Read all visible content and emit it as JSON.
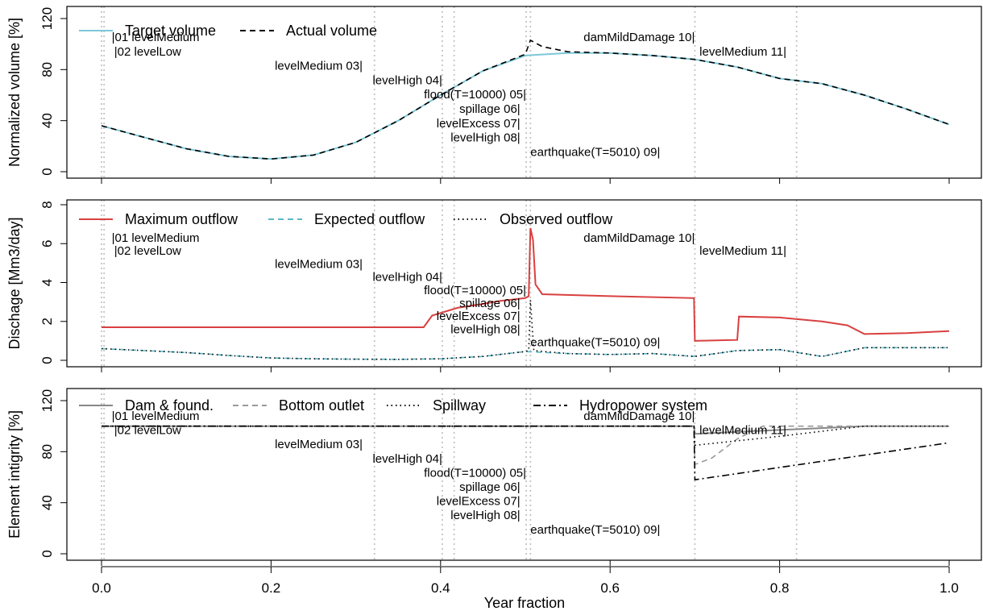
{
  "x_axis": {
    "label": "Year fraction",
    "ticks": [
      "0.0",
      "0.2",
      "0.4",
      "0.6",
      "0.8",
      "1.0"
    ],
    "range": [
      0,
      1
    ]
  },
  "event_lines": [
    0.0,
    0.003,
    0.322,
    0.402,
    0.416,
    0.501,
    0.506,
    0.7,
    0.82
  ],
  "annotations": [
    {
      "text": "|01 levelMedium",
      "x": 0.012,
      "anchor": "start",
      "row": 0
    },
    {
      "text": "|02 levelLow",
      "x": 0.015,
      "anchor": "start",
      "row": 1
    },
    {
      "text": "levelMedium 03|",
      "x": 0.308,
      "anchor": "end",
      "row": 2
    },
    {
      "text": "levelHigh 04|",
      "x": 0.402,
      "anchor": "end",
      "row": 3
    },
    {
      "text": "flood(T=10000) 05|",
      "x": 0.501,
      "anchor": "end",
      "row": 4
    },
    {
      "text": "spillage 06|",
      "x": 0.494,
      "anchor": "end",
      "row": 5
    },
    {
      "text": "levelExcess 07|",
      "x": 0.494,
      "anchor": "end",
      "row": 6
    },
    {
      "text": "levelHigh 08|",
      "x": 0.494,
      "anchor": "end",
      "row": 7
    },
    {
      "text": "earthquake(T=5010) 09|",
      "x": 0.506,
      "anchor": "start",
      "row": 8
    },
    {
      "text": "damMildDamage 10|",
      "x": 0.7,
      "anchor": "end",
      "row": 0
    },
    {
      "text": "levelMedium 11|",
      "x": 0.808,
      "anchor": "end",
      "row": 1
    }
  ],
  "chart_data": [
    {
      "type": "line",
      "ylabel": "Normalized volume [%]",
      "ylim": [
        0,
        120
      ],
      "yticks": [
        0,
        40,
        80,
        120
      ],
      "legend": [
        "Target volume",
        "Actual volume"
      ],
      "series": [
        {
          "name": "Target volume",
          "color": "#7cc8d8",
          "dash": "solid",
          "x": [
            0,
            0.05,
            0.1,
            0.15,
            0.2,
            0.25,
            0.3,
            0.35,
            0.4,
            0.45,
            0.5,
            0.55,
            0.6,
            0.65,
            0.7,
            0.75,
            0.8,
            0.85,
            0.9,
            0.95,
            1.0
          ],
          "y": [
            36,
            27,
            18,
            12,
            10,
            13,
            23,
            40,
            60,
            79,
            91,
            93,
            93,
            91,
            88,
            82,
            73,
            69,
            60,
            49,
            37
          ]
        },
        {
          "name": "Actual volume",
          "color": "#000000",
          "dash": "dashed",
          "x": [
            0,
            0.05,
            0.1,
            0.15,
            0.2,
            0.25,
            0.3,
            0.35,
            0.4,
            0.45,
            0.5,
            0.506,
            0.52,
            0.55,
            0.6,
            0.65,
            0.7,
            0.75,
            0.8,
            0.85,
            0.9,
            0.95,
            1.0
          ],
          "y": [
            36,
            27,
            18,
            12,
            10,
            13,
            23,
            40,
            60,
            79,
            92,
            103,
            98,
            94,
            93,
            91,
            88,
            82,
            73,
            69,
            60,
            49,
            37
          ]
        }
      ]
    },
    {
      "type": "line",
      "ylabel": "Dischage [Mm3/day]",
      "ylim": [
        0,
        8
      ],
      "yticks": [
        0,
        2,
        4,
        6,
        8
      ],
      "legend": [
        "Maximum outflow",
        "Expected outflow",
        "Observed outflow"
      ],
      "series": [
        {
          "name": "Maximum outflow",
          "color": "#d94040",
          "dash": "solid",
          "x": [
            0,
            0.38,
            0.39,
            0.42,
            0.45,
            0.47,
            0.5,
            0.504,
            0.506,
            0.509,
            0.512,
            0.52,
            0.6,
            0.699,
            0.7,
            0.75,
            0.752,
            0.8,
            0.85,
            0.88,
            0.9,
            0.95,
            1.0
          ],
          "y": [
            1.7,
            1.7,
            2.3,
            2.7,
            2.9,
            3.05,
            3.2,
            3.3,
            6.8,
            6.2,
            3.9,
            3.4,
            3.3,
            3.2,
            1.0,
            1.05,
            2.25,
            2.2,
            2.0,
            1.8,
            1.35,
            1.4,
            1.5
          ]
        },
        {
          "name": "Expected outflow",
          "color": "#5cb8c8",
          "dash": "dashed",
          "x": [
            0,
            0.05,
            0.1,
            0.15,
            0.2,
            0.25,
            0.3,
            0.35,
            0.4,
            0.45,
            0.5,
            0.55,
            0.6,
            0.65,
            0.7,
            0.75,
            0.8,
            0.85,
            0.9,
            0.95,
            1.0
          ],
          "y": [
            0.6,
            0.5,
            0.4,
            0.25,
            0.12,
            0.08,
            0.06,
            0.05,
            0.08,
            0.2,
            0.45,
            0.35,
            0.3,
            0.35,
            0.2,
            0.5,
            0.55,
            0.2,
            0.65,
            0.65,
            0.65
          ]
        },
        {
          "name": "Observed outflow",
          "color": "#000000",
          "dash": "dotted",
          "x": [
            0,
            0.05,
            0.1,
            0.15,
            0.2,
            0.25,
            0.3,
            0.35,
            0.4,
            0.45,
            0.5,
            0.504,
            0.506,
            0.51,
            0.55,
            0.6,
            0.65,
            0.7,
            0.75,
            0.8,
            0.85,
            0.9,
            0.95,
            1.0
          ],
          "y": [
            0.6,
            0.5,
            0.4,
            0.25,
            0.12,
            0.08,
            0.06,
            0.05,
            0.08,
            0.2,
            0.45,
            0.5,
            3.1,
            0.5,
            0.35,
            0.3,
            0.35,
            0.2,
            0.5,
            0.55,
            0.2,
            0.65,
            0.65,
            0.65
          ]
        }
      ]
    },
    {
      "type": "line",
      "ylabel": "Element intigrity [%]",
      "ylim": [
        0,
        120
      ],
      "yticks": [
        0,
        40,
        80,
        120
      ],
      "legend": [
        "Dam & found.",
        "Bottom outlet",
        "Spillway",
        "Hydropower system"
      ],
      "series": [
        {
          "name": "Dam & found.",
          "color": "#888888",
          "dash": "solid",
          "x": [
            0,
            0.699,
            0.7,
            0.8,
            0.9,
            1.0
          ],
          "y": [
            100,
            100,
            94,
            97,
            100,
            100
          ]
        },
        {
          "name": "Bottom outlet",
          "color": "#999999",
          "dash": "dashed",
          "x": [
            0,
            0.699,
            0.7,
            0.72,
            0.75,
            0.78,
            0.9,
            1.0
          ],
          "y": [
            100,
            100,
            70,
            75,
            90,
            100,
            100,
            100
          ]
        },
        {
          "name": "Spillway",
          "color": "#000000",
          "dash": "dotted",
          "x": [
            0,
            0.699,
            0.7,
            0.8,
            0.9,
            1.0
          ],
          "y": [
            100,
            100,
            85,
            92,
            100,
            100
          ]
        },
        {
          "name": "Hydropower system",
          "color": "#000000",
          "dash": "dashdot",
          "x": [
            0,
            0.699,
            0.7,
            1.0
          ],
          "y": [
            100,
            100,
            58,
            87
          ]
        }
      ]
    }
  ]
}
